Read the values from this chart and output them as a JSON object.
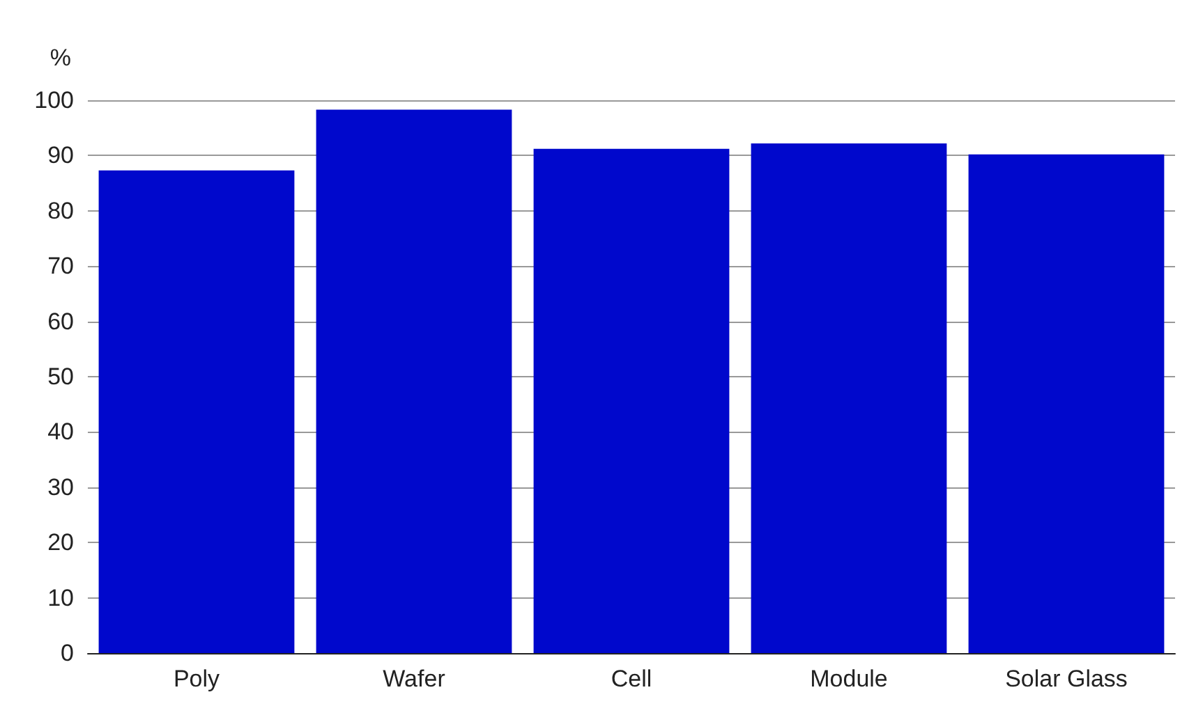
{
  "chart_data": {
    "type": "bar",
    "ylabel": "%",
    "categories": [
      "Poly",
      "Wafer",
      "Cell",
      "Module",
      "Solar Glass"
    ],
    "values": [
      87.3,
      98.3,
      91.2,
      92.2,
      90.2
    ],
    "color": "#0008cc",
    "ylim": [
      0,
      100
    ],
    "yticks": [
      0,
      10,
      20,
      30,
      40,
      50,
      60,
      70,
      80,
      90,
      100
    ],
    "grid": "y"
  }
}
